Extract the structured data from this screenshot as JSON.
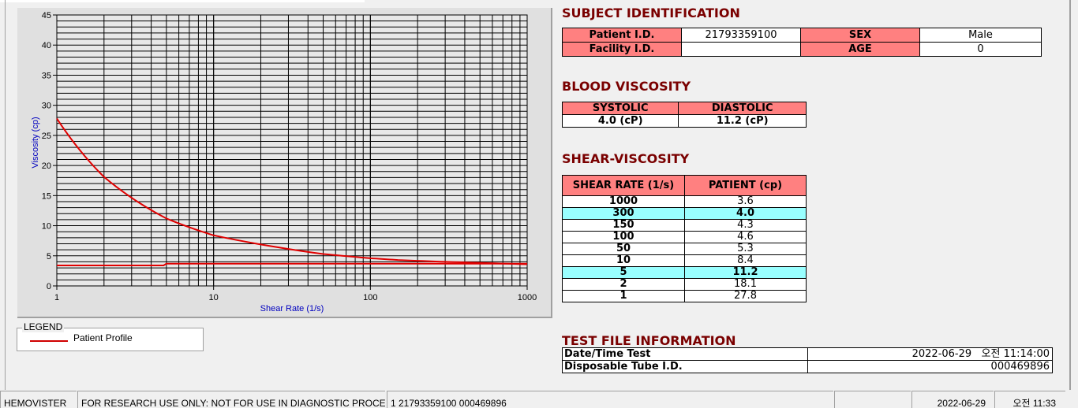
{
  "chart_data": {
    "type": "line",
    "xlabel": "Shear Rate (1/s)",
    "ylabel": "Viscosity (cp)",
    "x_scale": "log",
    "xlim": [
      1,
      1000
    ],
    "ylim": [
      0,
      45
    ],
    "x_ticks": [
      "1",
      "10",
      "100",
      "1000"
    ],
    "y_ticks": [
      "0",
      "5",
      "10",
      "15",
      "20",
      "25",
      "30",
      "35",
      "40",
      "45"
    ],
    "grid": true,
    "series": [
      {
        "name": "Patient Profile",
        "color": "#e00000",
        "x": [
          1,
          2,
          5,
          10,
          50,
          100,
          150,
          300,
          1000
        ],
        "y": [
          27.8,
          18.1,
          11.2,
          8.4,
          5.3,
          4.6,
          4.3,
          4.0,
          3.6
        ]
      },
      {
        "color": "#e00000",
        "x": [
          1,
          4.8,
          5,
          1000
        ],
        "y": [
          3.4,
          3.4,
          3.7,
          3.7
        ]
      }
    ]
  },
  "legend": {
    "title": "LEGEND",
    "items": [
      {
        "label": "Patient Profile",
        "color": "#e00000"
      }
    ]
  },
  "subject": {
    "title": "SUBJECT IDENTIFICATION",
    "patient_id_label": "Patient I.D.",
    "patient_id": "21793359100",
    "sex_label": "SEX",
    "sex": "Male",
    "facility_label": "Facility I.D.",
    "facility": "",
    "age_label": "AGE",
    "age": "0"
  },
  "blood": {
    "title": "BLOOD VISCOSITY",
    "systolic_label": "SYSTOLIC",
    "diastolic_label": "DIASTOLIC",
    "systolic": "4.0 (cP)",
    "diastolic": "11.2 (cP)"
  },
  "shear": {
    "title": "SHEAR-VISCOSITY",
    "col1": "SHEAR RATE (1/s)",
    "col2": "PATIENT (cp)",
    "rows": [
      {
        "rate": "1000",
        "val": "3.6"
      },
      {
        "rate": "300",
        "val": "4.0",
        "hl": true
      },
      {
        "rate": "150",
        "val": "4.3"
      },
      {
        "rate": "100",
        "val": "4.6"
      },
      {
        "rate": "50",
        "val": "5.3"
      },
      {
        "rate": "10",
        "val": "8.4"
      },
      {
        "rate": "5",
        "val": "11.2",
        "hl": true
      },
      {
        "rate": "2",
        "val": "18.1"
      },
      {
        "rate": "1",
        "val": "27.8"
      }
    ]
  },
  "testfile": {
    "title": "TEST FILE INFORMATION",
    "date_label": "Date/Time Test",
    "date": "2022-06-29   오전 11:14:00",
    "tube_label": "Disposable Tube I.D.",
    "tube": "000469896"
  },
  "status": {
    "app": "HEMOVISTER",
    "notice": "FOR RESEARCH USE ONLY: NOT FOR USE IN DIAGNOSTIC PROCEDURES",
    "record": "1  21793359100  000469896",
    "date": "2022-06-29",
    "time": "오전 11:33"
  },
  "colors": {
    "header": "#ff8080",
    "highlight": "#99ffff",
    "title": "#7a0000"
  }
}
